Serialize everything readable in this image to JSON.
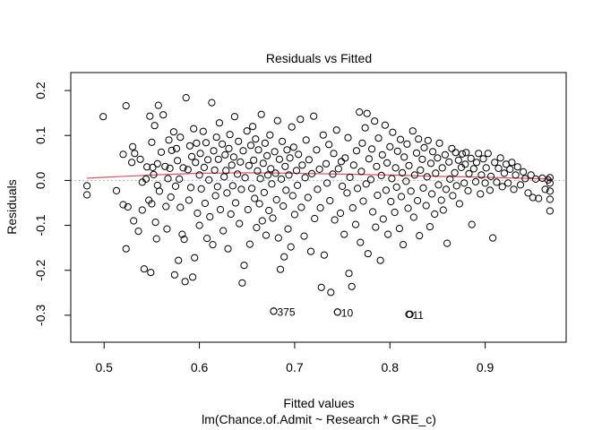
{
  "chart_data": {
    "type": "scatter",
    "title": "Residuals vs Fitted",
    "xlabel": "Fitted values",
    "ylabel": "Residuals",
    "subtitle": "lm(Chance.of.Admit ~ Research * GRE_c)",
    "xlim": [
      0.465,
      0.985
    ],
    "ylim": [
      -0.36,
      0.24
    ],
    "x_ticks": [
      0.5,
      0.6,
      0.7,
      0.8,
      0.9
    ],
    "x_tick_labels": [
      "0.5",
      "0.6",
      "0.7",
      "0.8",
      "0.9"
    ],
    "y_ticks": [
      -0.3,
      -0.2,
      -0.1,
      0.0,
      0.1,
      0.2
    ],
    "y_tick_labels": [
      "-0.3",
      "-0.2",
      "-0.1",
      "0.0",
      "0.1",
      "0.2"
    ],
    "zero_line": true,
    "grid": false,
    "colors": {
      "points": "#000000",
      "smooth": "#df536b",
      "zero": "#9aa0a6"
    },
    "smooth_line": {
      "x": [
        0.482,
        0.55,
        0.6,
        0.65,
        0.7,
        0.75,
        0.8,
        0.85,
        0.9,
        0.97
      ],
      "y": [
        0.005,
        0.012,
        0.016,
        0.017,
        0.016,
        0.014,
        0.012,
        0.009,
        0.007,
        0.003
      ]
    },
    "labeled_points": [
      {
        "x": 0.678,
        "y": -0.291,
        "label": "375"
      },
      {
        "x": 0.745,
        "y": -0.293,
        "label": "10"
      },
      {
        "x": 0.82,
        "y": -0.298,
        "label": "11"
      }
    ],
    "points": [
      [
        0.482,
        -0.012
      ],
      [
        0.482,
        -0.032
      ],
      [
        0.499,
        0.142
      ],
      [
        0.513,
        -0.023
      ],
      [
        0.52,
        -0.054
      ],
      [
        0.52,
        0.058
      ],
      [
        0.523,
        0.166
      ],
      [
        0.523,
        -0.152
      ],
      [
        0.525,
        -0.059
      ],
      [
        0.529,
        0.04
      ],
      [
        0.53,
        0.075
      ],
      [
        0.531,
        -0.09
      ],
      [
        0.532,
        0.06
      ],
      [
        0.536,
        -0.113
      ],
      [
        0.538,
        0.047
      ],
      [
        0.54,
        -0.066
      ],
      [
        0.54,
        -0.004
      ],
      [
        0.542,
        -0.197
      ],
      [
        0.544,
        0.003
      ],
      [
        0.545,
        0.03
      ],
      [
        0.547,
        -0.044
      ],
      [
        0.548,
        0.143
      ],
      [
        0.549,
        -0.205
      ],
      [
        0.55,
        0.085
      ],
      [
        0.55,
        -0.052
      ],
      [
        0.551,
        0.029
      ],
      [
        0.552,
        0.013
      ],
      [
        0.553,
        0.122
      ],
      [
        0.554,
        -0.093
      ],
      [
        0.555,
        -0.13
      ],
      [
        0.556,
        0.037
      ],
      [
        0.556,
        -0.011
      ],
      [
        0.557,
        0.167
      ],
      [
        0.558,
        -0.024
      ],
      [
        0.56,
        0.063
      ],
      [
        0.562,
        0.146
      ],
      [
        0.564,
        0.031
      ],
      [
        0.565,
        -0.058
      ],
      [
        0.566,
        -0.108
      ],
      [
        0.567,
        0.004
      ],
      [
        0.568,
        0.09
      ],
      [
        0.569,
        0.027
      ],
      [
        0.57,
        -0.037
      ],
      [
        0.571,
        0.067
      ],
      [
        0.573,
        0.108
      ],
      [
        0.574,
        -0.21
      ],
      [
        0.575,
        -0.013
      ],
      [
        0.576,
        0.071
      ],
      [
        0.577,
        0.044
      ],
      [
        0.578,
        -0.178
      ],
      [
        0.579,
        0.003
      ],
      [
        0.58,
        0.096
      ],
      [
        0.58,
        -0.06
      ],
      [
        0.582,
        -0.12
      ],
      [
        0.583,
        0.028
      ],
      [
        0.584,
        -0.131
      ],
      [
        0.585,
        -0.225
      ],
      [
        0.586,
        0.184
      ],
      [
        0.588,
        0.024
      ],
      [
        0.589,
        -0.044
      ],
      [
        0.59,
        0.077
      ],
      [
        0.591,
        -0.016
      ],
      [
        0.592,
        0.053
      ],
      [
        0.593,
        -0.215
      ],
      [
        0.594,
        0.115
      ],
      [
        0.595,
        -0.172
      ],
      [
        0.596,
        0.04
      ],
      [
        0.597,
        0.083
      ],
      [
        0.598,
        -0.073
      ],
      [
        0.6,
        0.012
      ],
      [
        0.6,
        -0.1
      ],
      [
        0.601,
        0.06
      ],
      [
        0.602,
        -0.019
      ],
      [
        0.604,
        0.109
      ],
      [
        0.605,
        0.029
      ],
      [
        0.606,
        -0.051
      ],
      [
        0.607,
        0.084
      ],
      [
        0.608,
        -0.129
      ],
      [
        0.609,
        0.046
      ],
      [
        0.61,
        0.001
      ],
      [
        0.611,
        -0.081
      ],
      [
        0.613,
        0.173
      ],
      [
        0.614,
        -0.143
      ],
      [
        0.615,
        0.066
      ],
      [
        0.616,
        0.023
      ],
      [
        0.617,
        -0.034
      ],
      [
        0.618,
        0.096
      ],
      [
        0.619,
        -0.014
      ],
      [
        0.62,
        0.047
      ],
      [
        0.621,
        0.128
      ],
      [
        0.622,
        -0.065
      ],
      [
        0.624,
        0.081
      ],
      [
        0.625,
        -0.112
      ],
      [
        0.626,
        0.008
      ],
      [
        0.627,
        0.057
      ],
      [
        0.628,
        0.022
      ],
      [
        0.629,
        -0.028
      ],
      [
        0.63,
        -0.152
      ],
      [
        0.631,
        0.071
      ],
      [
        0.632,
        0.102
      ],
      [
        0.633,
        -0.075
      ],
      [
        0.634,
        0.034
      ],
      [
        0.635,
        -0.012
      ],
      [
        0.636,
        0.052
      ],
      [
        0.637,
        0.142
      ],
      [
        0.638,
        -0.05
      ],
      [
        0.64,
        0.014
      ],
      [
        0.641,
        0.087
      ],
      [
        0.642,
        -0.096
      ],
      [
        0.643,
        0.041
      ],
      [
        0.644,
        -0.02
      ],
      [
        0.645,
        -0.228
      ],
      [
        0.646,
        0.066
      ],
      [
        0.647,
        -0.189
      ],
      [
        0.648,
        0.006
      ],
      [
        0.65,
        0.11
      ],
      [
        0.651,
        -0.065
      ],
      [
        0.652,
        0.033
      ],
      [
        0.653,
        -0.142
      ],
      [
        0.654,
        0.078
      ],
      [
        0.655,
        -0.018
      ],
      [
        0.656,
        0.12
      ],
      [
        0.657,
        0.045
      ],
      [
        0.658,
        -0.04
      ],
      [
        0.659,
        0.092
      ],
      [
        0.66,
        -0.105
      ],
      [
        0.661,
        0.021
      ],
      [
        0.662,
        0.068
      ],
      [
        0.663,
        -0.052
      ],
      [
        0.664,
        0.004
      ],
      [
        0.665,
        0.147
      ],
      [
        0.666,
        -0.09
      ],
      [
        0.667,
        0.038
      ],
      [
        0.668,
        -0.027
      ],
      [
        0.669,
        0.083
      ],
      [
        0.67,
        -0.122
      ],
      [
        0.671,
        0.055
      ],
      [
        0.672,
        0.012
      ],
      [
        0.673,
        -0.067
      ],
      [
        0.674,
        0.101
      ],
      [
        0.675,
        0.026
      ],
      [
        0.676,
        -0.008
      ],
      [
        0.677,
        -0.084
      ],
      [
        0.678,
        -0.291
      ],
      [
        0.679,
        0.064
      ],
      [
        0.68,
        0.016
      ],
      [
        0.681,
        -0.043
      ],
      [
        0.682,
        0.133
      ],
      [
        0.683,
        -0.128
      ],
      [
        0.684,
        0.047
      ],
      [
        0.685,
        -0.198
      ],
      [
        0.686,
        0.003
      ],
      [
        0.687,
        0.087
      ],
      [
        0.688,
        -0.057
      ],
      [
        0.689,
        -0.17
      ],
      [
        0.69,
        0.031
      ],
      [
        0.691,
        -0.022
      ],
      [
        0.692,
        0.068
      ],
      [
        0.693,
        -0.108
      ],
      [
        0.694,
        0.012
      ],
      [
        0.695,
        0.05
      ],
      [
        0.696,
        -0.148
      ],
      [
        0.697,
        0.119
      ],
      [
        0.698,
        -0.034
      ],
      [
        0.699,
        0.074
      ],
      [
        0.7,
        -0.076
      ],
      [
        0.702,
        0.022
      ],
      [
        0.703,
        -0.011
      ],
      [
        0.704,
        0.058
      ],
      [
        0.706,
        0.136
      ],
      [
        0.707,
        -0.06
      ],
      [
        0.708,
        0.034
      ],
      [
        0.71,
        -0.124
      ],
      [
        0.711,
        0.006
      ],
      [
        0.712,
        0.09
      ],
      [
        0.714,
        -0.038
      ],
      [
        0.715,
        0.046
      ],
      [
        0.717,
        -0.158
      ],
      [
        0.718,
        0.015
      ],
      [
        0.72,
        0.143
      ],
      [
        0.721,
        -0.085
      ],
      [
        0.723,
        0.068
      ],
      [
        0.724,
        -0.02
      ],
      [
        0.726,
        0.025
      ],
      [
        0.727,
        -0.061
      ],
      [
        0.728,
        -0.238
      ],
      [
        0.73,
        0.101
      ],
      [
        0.731,
        -0.166
      ],
      [
        0.733,
        0.037
      ],
      [
        0.734,
        -0.006
      ],
      [
        0.736,
        0.08
      ],
      [
        0.737,
        -0.045
      ],
      [
        0.738,
        -0.249
      ],
      [
        0.74,
        0.014
      ],
      [
        0.741,
        0.06
      ],
      [
        0.742,
        -0.088
      ],
      [
        0.744,
        0.112
      ],
      [
        0.745,
        -0.293
      ],
      [
        0.746,
        0.026
      ],
      [
        0.748,
        -0.073
      ],
      [
        0.749,
        0.042
      ],
      [
        0.75,
        -0.013
      ],
      [
        0.752,
        -0.12
      ],
      [
        0.753,
        0.05
      ],
      [
        0.755,
        -0.028
      ],
      [
        0.756,
        0.095
      ],
      [
        0.757,
        -0.207
      ],
      [
        0.758,
        0.007
      ],
      [
        0.76,
        -0.236
      ],
      [
        0.761,
        -0.061
      ],
      [
        0.762,
        0.034
      ],
      [
        0.764,
        -0.098
      ],
      [
        0.765,
        0.066
      ],
      [
        0.766,
        -0.018
      ],
      [
        0.768,
        0.152
      ],
      [
        0.769,
        -0.138
      ],
      [
        0.77,
        0.02
      ],
      [
        0.771,
        0.083
      ],
      [
        0.772,
        -0.046
      ],
      [
        0.774,
        0.117
      ],
      [
        0.775,
        -0.008
      ],
      [
        0.776,
        0.149
      ],
      [
        0.777,
        -0.163
      ],
      [
        0.778,
        0.048
      ],
      [
        0.78,
        0.002
      ],
      [
        0.781,
        0.07
      ],
      [
        0.782,
        -0.07
      ],
      [
        0.784,
        0.132
      ],
      [
        0.785,
        -0.104
      ],
      [
        0.786,
        0.031
      ],
      [
        0.787,
        -0.033
      ],
      [
        0.788,
        0.094
      ],
      [
        0.79,
        -0.178
      ],
      [
        0.791,
        0.011
      ],
      [
        0.792,
        0.057
      ],
      [
        0.793,
        -0.086
      ],
      [
        0.795,
        0.123
      ],
      [
        0.796,
        -0.022
      ],
      [
        0.797,
        0.039
      ],
      [
        0.798,
        -0.12
      ],
      [
        0.8,
        0.075
      ],
      [
        0.801,
        -0.047
      ],
      [
        0.802,
        0.004
      ],
      [
        0.803,
        0.107
      ],
      [
        0.805,
        -0.071
      ],
      [
        0.806,
        0.028
      ],
      [
        0.807,
        -0.015
      ],
      [
        0.808,
        0.065
      ],
      [
        0.81,
        -0.107
      ],
      [
        0.811,
        0.091
      ],
      [
        0.812,
        -0.036
      ],
      [
        0.813,
        0.017
      ],
      [
        0.814,
        -0.143
      ],
      [
        0.815,
        0.052
      ],
      [
        0.817,
        -0.002
      ],
      [
        0.818,
        0.081
      ],
      [
        0.819,
        -0.062
      ],
      [
        0.82,
        0.033
      ],
      [
        0.821,
        -0.298
      ],
      [
        0.822,
        -0.024
      ],
      [
        0.824,
        0.11
      ],
      [
        0.825,
        -0.082
      ],
      [
        0.826,
        0.012
      ],
      [
        0.828,
        0.061
      ],
      [
        0.829,
        -0.045
      ],
      [
        0.83,
        0.092
      ],
      [
        0.831,
        -0.123
      ],
      [
        0.832,
        0.023
      ],
      [
        0.834,
        0.047
      ],
      [
        0.835,
        -0.017
      ],
      [
        0.836,
        0.073
      ],
      [
        0.838,
        -0.056
      ],
      [
        0.839,
        0.008
      ],
      [
        0.84,
        0.089
      ],
      [
        0.842,
        -0.103
      ],
      [
        0.843,
        0.038
      ],
      [
        0.844,
        -0.03
      ],
      [
        0.845,
        0.064
      ],
      [
        0.847,
        -0.075
      ],
      [
        0.848,
        0.016
      ],
      [
        0.85,
        0.05
      ],
      [
        0.851,
        -0.01
      ],
      [
        0.852,
        0.083
      ],
      [
        0.854,
        -0.044
      ],
      [
        0.855,
        0.028
      ],
      [
        0.856,
        -0.066
      ],
      [
        0.858,
        0.057
      ],
      [
        0.859,
        -0.02
      ],
      [
        0.86,
        -0.14
      ],
      [
        0.862,
        0.041
      ],
      [
        0.863,
        0.003
      ],
      [
        0.865,
        0.071
      ],
      [
        0.866,
        -0.034
      ],
      [
        0.868,
        0.017
      ],
      [
        0.869,
        0.062
      ],
      [
        0.87,
        -0.012
      ],
      [
        0.872,
        0.045
      ],
      [
        0.873,
        -0.052
      ],
      [
        0.875,
        0.029
      ],
      [
        0.876,
        0.059
      ],
      [
        0.878,
        -0.006
      ],
      [
        0.879,
        0.036
      ],
      [
        0.88,
        0.062
      ],
      [
        0.882,
        -0.023
      ],
      [
        0.883,
        0.015
      ],
      [
        0.885,
        0.049
      ],
      [
        0.886,
        -0.098
      ],
      [
        0.888,
        0.026
      ],
      [
        0.89,
        -0.003
      ],
      [
        0.891,
        0.04
      ],
      [
        0.893,
        0.06
      ],
      [
        0.895,
        -0.03
      ],
      [
        0.896,
        0.012
      ],
      [
        0.898,
        0.048
      ],
      [
        0.9,
        -0.006
      ],
      [
        0.901,
        0.028
      ],
      [
        0.903,
        0.06
      ],
      [
        0.905,
        -0.022
      ],
      [
        0.906,
        0.009
      ],
      [
        0.908,
        -0.128
      ],
      [
        0.91,
        0.04
      ],
      [
        0.912,
        -0.004
      ],
      [
        0.914,
        0.027
      ],
      [
        0.916,
        0.05
      ],
      [
        0.918,
        -0.014
      ],
      [
        0.92,
        0.016
      ],
      [
        0.922,
        0.036
      ],
      [
        0.924,
        -0.006
      ],
      [
        0.926,
        0.025
      ],
      [
        0.928,
        0.04
      ],
      [
        0.93,
        -0.02
      ],
      [
        0.932,
        0.012
      ],
      [
        0.934,
        0.03
      ],
      [
        0.937,
        -0.01
      ],
      [
        0.94,
        0.019
      ],
      [
        0.942,
        0.004
      ],
      [
        0.945,
        -0.028
      ],
      [
        0.948,
        0.012
      ],
      [
        0.95,
        -0.038
      ],
      [
        0.953,
        0.003
      ],
      [
        0.956,
        -0.04
      ],
      [
        0.96,
        0.005
      ],
      [
        0.963,
        -0.02
      ],
      [
        0.966,
        0.001
      ],
      [
        0.968,
        -0.068
      ],
      [
        0.968,
        0.006
      ],
      [
        0.968,
        -0.042
      ],
      [
        0.968,
        -0.024
      ],
      [
        0.968,
        -0.006
      ]
    ]
  }
}
